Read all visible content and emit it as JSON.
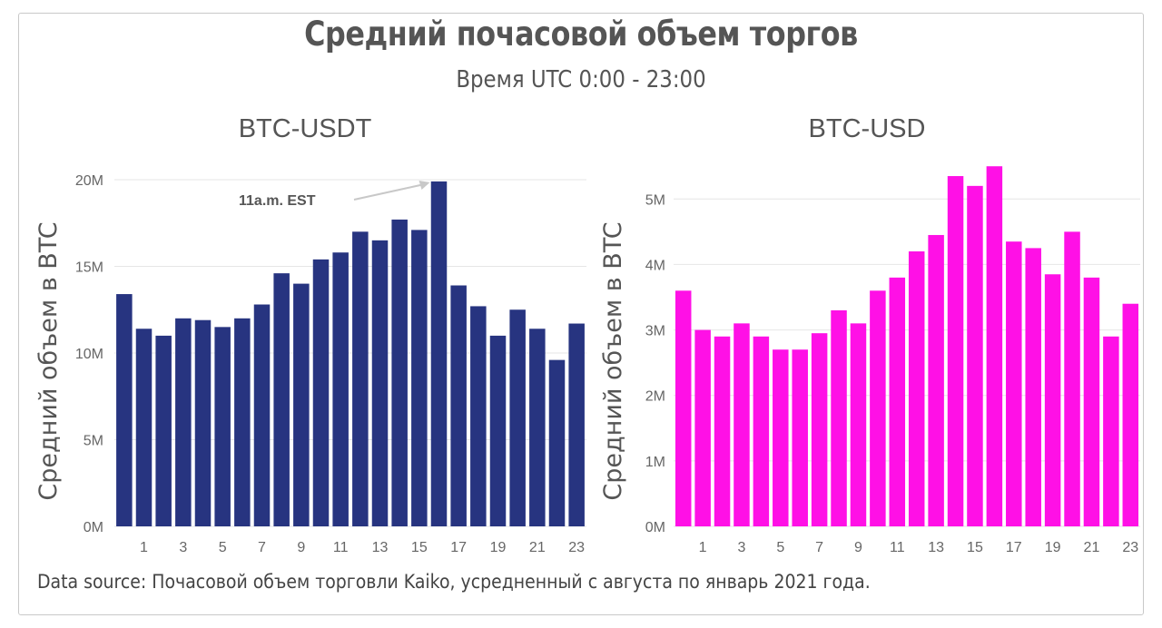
{
  "title": "Средний почасовой объем торгов",
  "subtitle": "Время UTC  0:00 - 23:00",
  "source": "Data source: Почасовой объем торговли Kaiko, усредненный с августа по январь 2021 года.",
  "colors": {
    "left": "#273480",
    "right": "#ff10e6"
  },
  "chart_data": [
    {
      "type": "bar",
      "title": "BTC-USDT",
      "ylabel": "Средний объем в BTC",
      "x": [
        0,
        1,
        2,
        3,
        4,
        5,
        6,
        7,
        8,
        9,
        10,
        11,
        12,
        13,
        14,
        15,
        16,
        17,
        18,
        19,
        20,
        21,
        22,
        23
      ],
      "x_tick_labels": [
        "1",
        "3",
        "5",
        "7",
        "9",
        "11",
        "13",
        "15",
        "17",
        "19",
        "21",
        "23"
      ],
      "x_tick_values": [
        1,
        3,
        5,
        7,
        9,
        11,
        13,
        15,
        17,
        19,
        21,
        23
      ],
      "values": [
        13.4,
        11.4,
        11.0,
        12.0,
        11.9,
        11.5,
        12.0,
        12.8,
        14.6,
        14.0,
        15.4,
        15.8,
        17.0,
        16.5,
        17.7,
        17.1,
        19.9,
        13.9,
        12.7,
        11.0,
        12.5,
        11.4,
        9.6,
        11.7
      ],
      "unit": "M",
      "ylim": [
        0,
        20
      ],
      "y_ticks": [
        0,
        5,
        10,
        15,
        20
      ],
      "y_tick_labels": [
        "0M",
        "5M",
        "10M",
        "15M",
        "20M"
      ],
      "grid": true,
      "annotation": {
        "text": "11a.m. EST",
        "target_x": 16
      }
    },
    {
      "type": "bar",
      "title": "BTC-USD",
      "ylabel": "Средний объем в BTC",
      "x": [
        0,
        1,
        2,
        3,
        4,
        5,
        6,
        7,
        8,
        9,
        10,
        11,
        12,
        13,
        14,
        15,
        16,
        17,
        18,
        19,
        20,
        21,
        22,
        23
      ],
      "x_tick_labels": [
        "1",
        "3",
        "5",
        "7",
        "9",
        "11",
        "13",
        "15",
        "17",
        "19",
        "21",
        "23"
      ],
      "x_tick_values": [
        1,
        3,
        5,
        7,
        9,
        11,
        13,
        15,
        17,
        19,
        21,
        23
      ],
      "values": [
        3.6,
        3.0,
        2.9,
        3.1,
        2.9,
        2.7,
        2.7,
        2.95,
        3.3,
        3.1,
        3.6,
        3.8,
        4.2,
        4.45,
        5.35,
        5.2,
        5.5,
        4.35,
        4.25,
        3.85,
        4.5,
        3.8,
        2.9,
        3.4
      ],
      "unit": "M",
      "ylim": [
        0,
        5.6
      ],
      "y_ticks": [
        0,
        1,
        2,
        3,
        4,
        5
      ],
      "y_tick_labels": [
        "0M",
        "1M",
        "2M",
        "3M",
        "4M",
        "5M"
      ],
      "grid": true
    }
  ]
}
